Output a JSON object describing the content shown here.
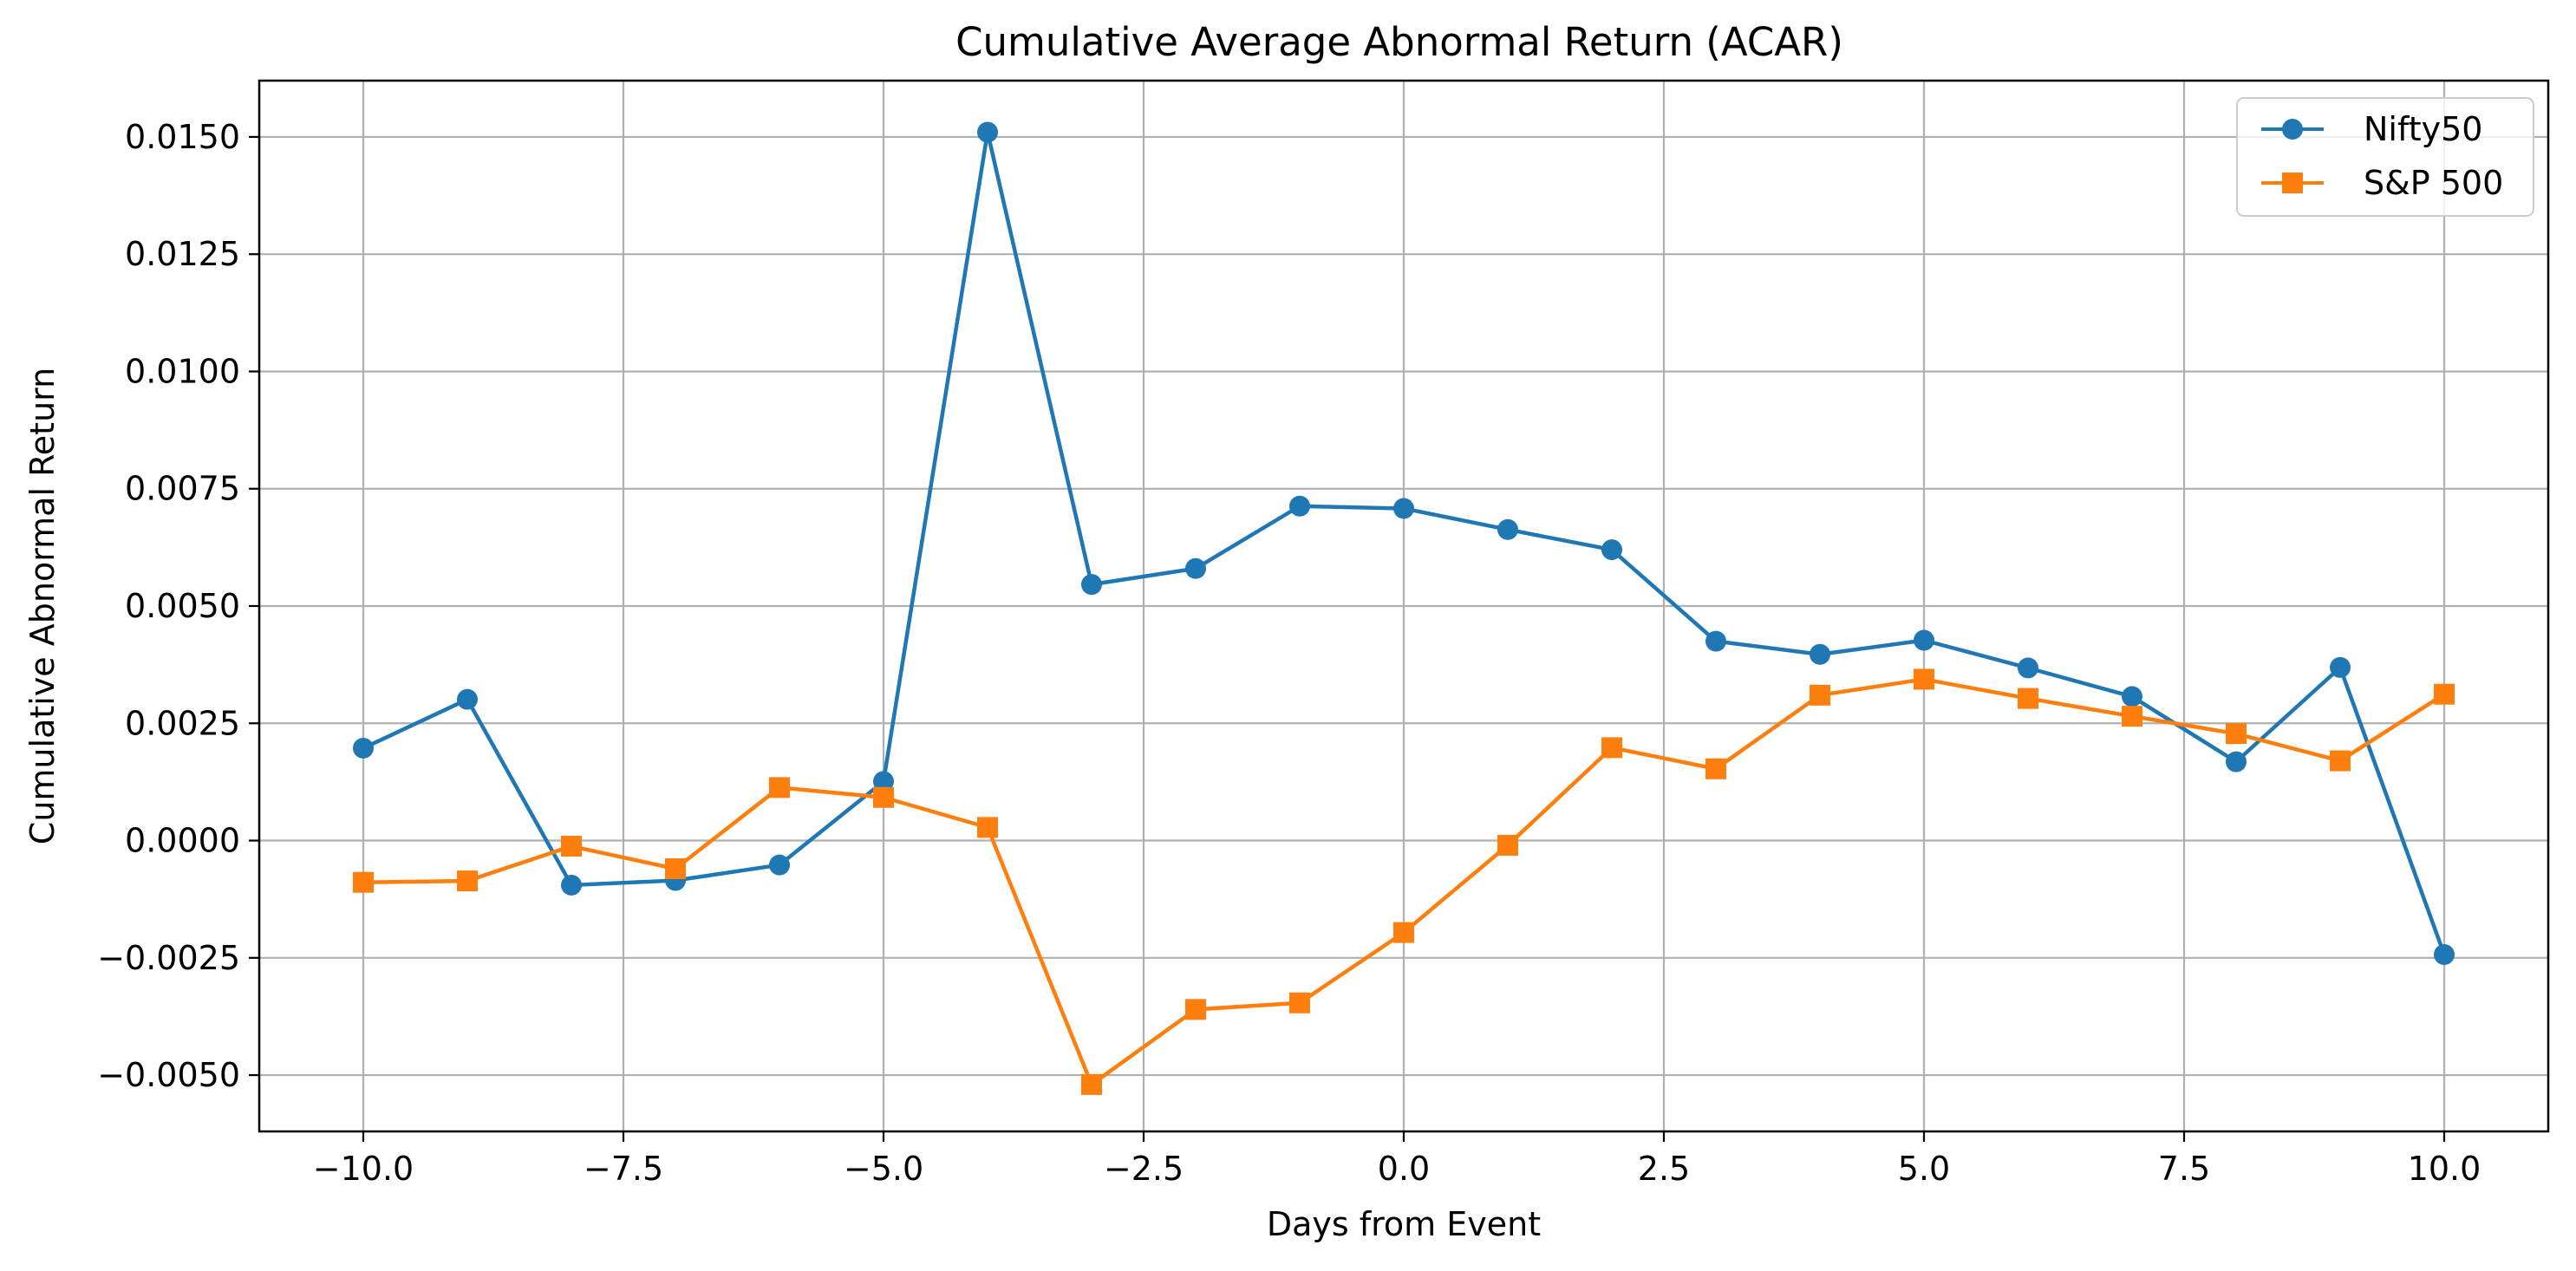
{
  "chart_data": {
    "type": "line",
    "title": "Cumulative Average Abnormal Return (ACAR)",
    "xlabel": "Days from Event",
    "ylabel": "Cumulative Abnormal Return",
    "xlim": [
      -11.0,
      11.0
    ],
    "ylim": [
      -0.0062,
      0.0162
    ],
    "xticks": [
      -10.0,
      -7.5,
      -5.0,
      -2.5,
      0.0,
      2.5,
      5.0,
      7.5,
      10.0
    ],
    "xtick_labels": [
      "−10.0",
      "−7.5",
      "−5.0",
      "−2.5",
      "0.0",
      "2.5",
      "5.0",
      "7.5",
      "10.0"
    ],
    "yticks": [
      -0.005,
      -0.0025,
      0.0,
      0.0025,
      0.005,
      0.0075,
      0.01,
      0.0125,
      0.015
    ],
    "ytick_labels": [
      "−0.0050",
      "−0.0025",
      "0.0000",
      "0.0025",
      "0.0050",
      "0.0075",
      "0.0100",
      "0.0125",
      "0.0150"
    ],
    "grid": true,
    "legend_position": "top-right",
    "x": [
      -10,
      -9,
      -8,
      -7,
      -6,
      -5,
      -4,
      -3,
      -2,
      -1,
      0,
      1,
      2,
      3,
      4,
      5,
      6,
      7,
      8,
      9,
      10
    ],
    "series": [
      {
        "name": "Nifty50",
        "color": "#1f77b4",
        "marker": "circle",
        "values": [
          0.00197,
          0.00301,
          -0.00095,
          -0.00085,
          -0.00052,
          0.00126,
          0.0151,
          0.00546,
          0.0058,
          0.00713,
          0.00708,
          0.00663,
          0.0062,
          0.00425,
          0.00397,
          0.00427,
          0.00368,
          0.00307,
          0.00168,
          0.00369,
          -0.00243
        ]
      },
      {
        "name": "S&P 500",
        "color": "#ff7f0e",
        "marker": "square",
        "values": [
          -0.00089,
          -0.00086,
          -0.00012,
          -0.0006,
          0.00113,
          0.00092,
          0.00028,
          -0.0052,
          -0.0036,
          -0.00346,
          -0.00196,
          -0.0001,
          0.00198,
          0.00153,
          0.0031,
          0.00344,
          0.00303,
          0.00265,
          0.00228,
          0.0017,
          0.00312
        ]
      }
    ]
  }
}
